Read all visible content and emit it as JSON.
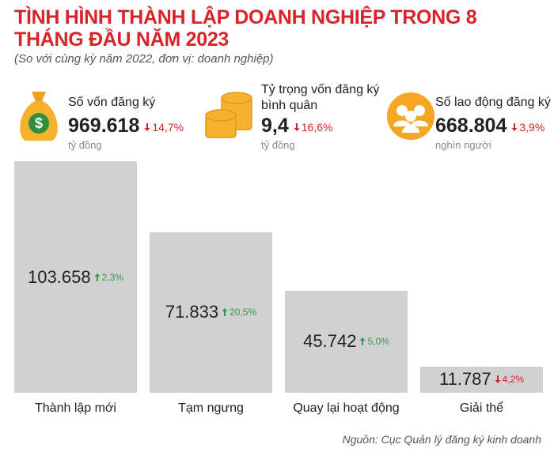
{
  "header": {
    "title": "TÌNH HÌNH THÀNH LẬP DOANH NGHIỆP TRONG 8 THÁNG ĐẦU NĂM 2023",
    "subtitle": "(So với cùng kỳ năm 2022, đơn vị: doanh nghiệp)"
  },
  "kpis": [
    {
      "label": "Số vốn đăng ký",
      "value": "969.618",
      "change": "14,7%",
      "direction": "down",
      "unit": "tỷ đồng"
    },
    {
      "label": "Tỷ trọng vốn đăng ký bình quân",
      "value": "9,4",
      "change": "16,6%",
      "direction": "down",
      "unit": "tỷ đồng"
    },
    {
      "label": "Số lao động đăng ký",
      "value": "668.804",
      "change": "3,9%",
      "direction": "down",
      "unit": "nghìn người"
    }
  ],
  "chart_data": {
    "type": "bar",
    "categories": [
      "Thành lập mới",
      "Tạm ngưng",
      "Quay lại hoạt động",
      "Giải thể"
    ],
    "values": [
      103658,
      71833,
      45742,
      11787
    ],
    "value_labels": [
      "103.658",
      "71.833",
      "45.742",
      "11.787"
    ],
    "changes": [
      {
        "label": "2,3%",
        "direction": "up"
      },
      {
        "label": "20,5%",
        "direction": "up"
      },
      {
        "label": "5,0%",
        "direction": "up"
      },
      {
        "label": "4,2%",
        "direction": "down"
      }
    ],
    "color": "#d2d1d2"
  },
  "source": "Nguồn: Cục Quản lý đăng ký kinh doanh"
}
